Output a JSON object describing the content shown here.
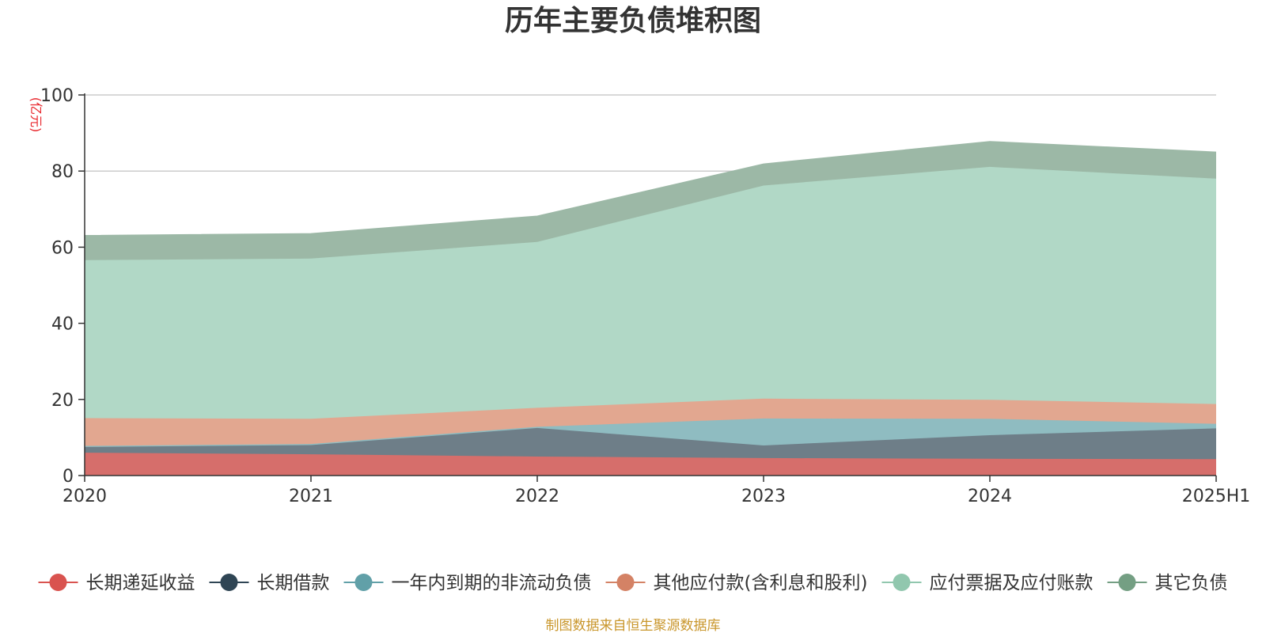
{
  "chart_data": {
    "type": "area",
    "stacked": true,
    "title": "历年主要负债堆积图",
    "unit_label": "(亿元)",
    "source_note": "制图数据来自恒生聚源数据库",
    "categories": [
      "2020",
      "2021",
      "2022",
      "2023",
      "2024",
      "2025H1"
    ],
    "ylim": [
      0,
      100
    ],
    "yticks": [
      0,
      20,
      40,
      60,
      80,
      100
    ],
    "grid": true,
    "legend_position": "bottom",
    "series": [
      {
        "name": "长期递延收益",
        "color": "#d9534f",
        "fill": "#d66e6b",
        "values": [
          6.0,
          5.6,
          5.0,
          4.6,
          4.4,
          4.3
        ]
      },
      {
        "name": "长期借款",
        "color": "#2f4554",
        "fill": "#6e7e88",
        "values": [
          1.5,
          2.4,
          7.5,
          3.3,
          6.2,
          8.1
        ]
      },
      {
        "name": "一年内到期的非流动负债",
        "color": "#61a0a8",
        "fill": "#8fbcc1",
        "values": [
          0.3,
          0.3,
          0.3,
          7.1,
          4.3,
          1.2
        ]
      },
      {
        "name": "其他应付款(含利息和股利)",
        "color": "#d48265",
        "fill": "#e2a790",
        "values": [
          7.3,
          6.6,
          5.0,
          5.2,
          5.0,
          5.2
        ]
      },
      {
        "name": "应付票据及应付账款",
        "color": "#91c7ae",
        "fill": "#b1d8c6",
        "values": [
          41.5,
          42.1,
          43.6,
          56.0,
          61.2,
          59.2
        ]
      },
      {
        "name": "其它负债",
        "color": "#749f83",
        "fill": "#9cb8a6",
        "values": [
          6.5,
          6.6,
          6.8,
          5.7,
          6.7,
          7.0
        ]
      }
    ]
  }
}
